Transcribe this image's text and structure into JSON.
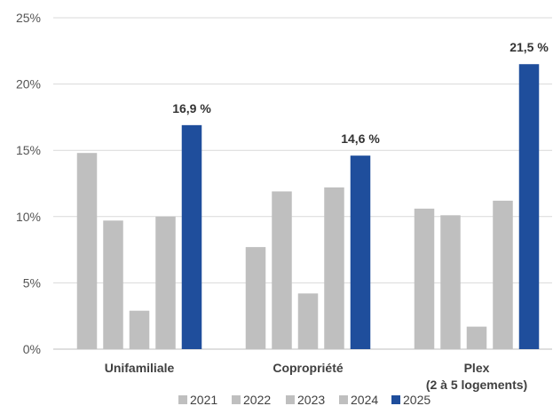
{
  "chart_data": {
    "type": "bar",
    "categories": [
      {
        "line1": "Unifamiliale",
        "line2": ""
      },
      {
        "line1": "Copropriété",
        "line2": ""
      },
      {
        "line1": "Plex",
        "line2": "(2 à 5 logements)"
      }
    ],
    "series": [
      {
        "name": "2021",
        "values": [
          14.8,
          7.7,
          10.6
        ],
        "color": "#bfbfbf"
      },
      {
        "name": "2022",
        "values": [
          9.7,
          11.9,
          10.1
        ],
        "color": "#bfbfbf"
      },
      {
        "name": "2023",
        "values": [
          2.9,
          4.2,
          1.7
        ],
        "color": "#bfbfbf"
      },
      {
        "name": "2024",
        "values": [
          10.0,
          12.2,
          11.2
        ],
        "color": "#bfbfbf"
      },
      {
        "name": "2025",
        "values": [
          16.9,
          14.6,
          21.5
        ],
        "color": "#1f4e9c"
      }
    ],
    "data_labels": [
      "16,9 %",
      "14,6 %",
      "21,5 %"
    ],
    "ylim": [
      0,
      25
    ],
    "yticks": [
      "0%",
      "5%",
      "10%",
      "15%",
      "20%",
      "25%"
    ],
    "gridlines": true,
    "legend_position": "bottom"
  }
}
